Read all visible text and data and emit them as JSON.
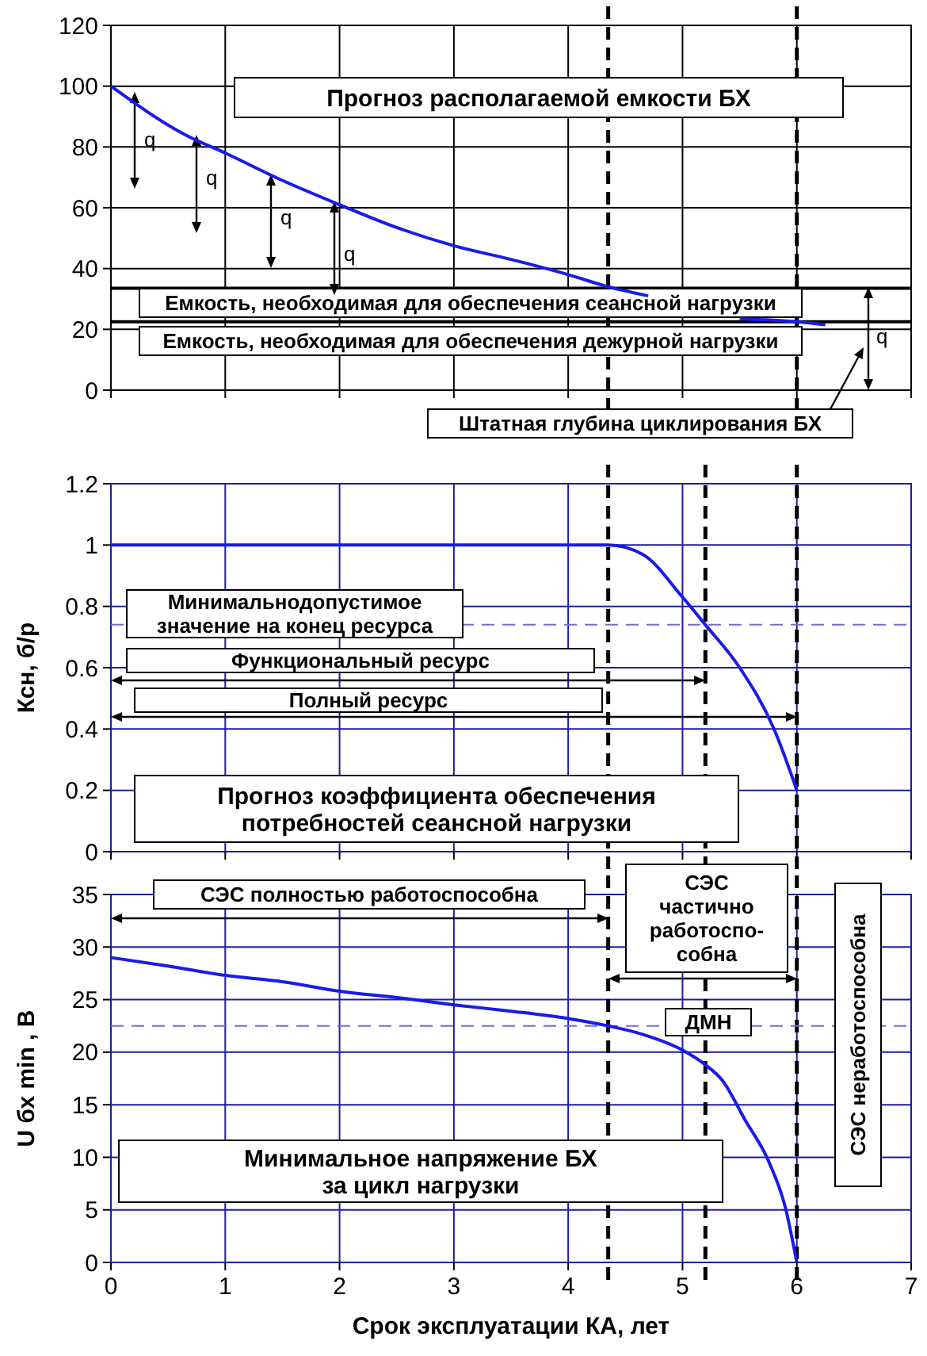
{
  "chart_data": [
    {
      "type": "line",
      "title": "Прогноз располагаемой емкости БХ",
      "x": [
        0,
        0.65,
        1,
        1.5,
        2,
        2.5,
        3,
        3.5,
        4,
        4.35,
        4.7,
        5.1,
        5.5,
        6,
        6.25
      ],
      "series": [
        {
          "color": "#1a1aeb",
          "values": [
            100,
            84,
            78,
            69,
            61,
            53.5,
            47.5,
            43,
            38,
            34,
            31,
            null,
            23.5,
            22.5,
            21.5
          ]
        }
      ],
      "xlim": [
        0,
        7
      ],
      "xticks": [
        0,
        1,
        2,
        3,
        4,
        5,
        6,
        7
      ],
      "ylim": [
        0,
        120
      ],
      "yticks": [
        0,
        20,
        40,
        60,
        80,
        100,
        120
      ],
      "grid": true,
      "tick_labels": "y",
      "ref_lines": [
        {
          "axis": "x",
          "value": 4.35,
          "color": "#000000",
          "line_style": "dashed"
        },
        {
          "axis": "x",
          "value": 6.0,
          "color": "#000000",
          "line_style": "dashed"
        },
        {
          "axis": "y",
          "value": 33.5,
          "label": "Емкость, необходимая для обеспечения сеансной нагрузки",
          "color": "#000000",
          "line_style": "solid"
        },
        {
          "axis": "y",
          "value": 22.5,
          "label": "Емкость, необходимая для обеспечения дежурной нагрузки",
          "color": "#000000",
          "line_style": "solid"
        }
      ],
      "annotations": [
        "q",
        "q",
        "q",
        "q",
        "q",
        "Штатная глубина циклирования БХ"
      ]
    },
    {
      "type": "line",
      "title": "Прогноз коэффициента обеспечения\nпотребностей сеансной нагрузки",
      "ylabel": "Ксн, б/р",
      "x": [
        0,
        4.35,
        4.65,
        5,
        5.2,
        5.5,
        5.8,
        6
      ],
      "series": [
        {
          "color": "#1a1aeb",
          "values": [
            1,
            1,
            0.97,
            0.83,
            0.74,
            0.6,
            0.4,
            0.2
          ]
        }
      ],
      "xlim": [
        0,
        7
      ],
      "xticks": [
        0,
        1,
        2,
        3,
        4,
        5,
        6,
        7
      ],
      "ylim": [
        0,
        1.2
      ],
      "yticks": [
        0,
        0.2,
        0.4,
        0.6,
        0.8,
        1,
        1.2
      ],
      "grid": true,
      "tick_labels": "y",
      "ref_lines": [
        {
          "axis": "x",
          "value": 4.35,
          "color": "#000000",
          "line_style": "dashed"
        },
        {
          "axis": "x",
          "value": 5.2,
          "color": "#000000",
          "line_style": "dashed"
        },
        {
          "axis": "x",
          "value": 6.0,
          "color": "#000000",
          "line_style": "dashed"
        },
        {
          "axis": "y",
          "value": 0.74,
          "label": "Минимальнодопустимое\nзначение на конец ресурса",
          "color": "#6f6fd0",
          "line_style": "dashed"
        }
      ],
      "annotations": [
        "Функциональный ресурс",
        "Полный ресурс"
      ]
    },
    {
      "type": "line",
      "title": "Минимальное напряжение БХ\nза цикл нагрузки",
      "xlabel": "Срок эксплуатации КА, лет",
      "ylabel": "U бх min , В",
      "x": [
        0,
        0.5,
        1,
        1.5,
        2,
        2.5,
        3,
        3.5,
        4,
        4.35,
        4.65,
        5,
        5.2,
        5.35,
        5.55,
        5.75,
        5.9,
        6
      ],
      "series": [
        {
          "color": "#1a1aeb",
          "values": [
            29,
            28.2,
            27.3,
            26.7,
            25.8,
            25.2,
            24.5,
            23.9,
            23.2,
            22.5,
            21.7,
            20.2,
            18.8,
            17.3,
            13.5,
            9.7,
            5.2,
            0
          ]
        }
      ],
      "xlim": [
        0,
        7
      ],
      "xticks": [
        0,
        1,
        2,
        3,
        4,
        5,
        6,
        7
      ],
      "ylim": [
        0,
        35
      ],
      "yticks": [
        0,
        5,
        10,
        15,
        20,
        25,
        30,
        35
      ],
      "grid": true,
      "ref_lines": [
        {
          "axis": "x",
          "value": 4.35,
          "color": "#000000",
          "line_style": "dashed"
        },
        {
          "axis": "x",
          "value": 5.2,
          "color": "#000000",
          "line_style": "dashed"
        },
        {
          "axis": "x",
          "value": 6.0,
          "color": "#000000",
          "line_style": "dashed"
        },
        {
          "axis": "y",
          "value": 22.5,
          "label": "ДМН",
          "color": "#6f6fd0",
          "line_style": "dashed"
        }
      ],
      "annotations": [
        "СЭС полностью работоспособна",
        "СЭС\nчастично\nработоспо-\nсобна",
        "СЭС неработоспособна"
      ]
    }
  ]
}
